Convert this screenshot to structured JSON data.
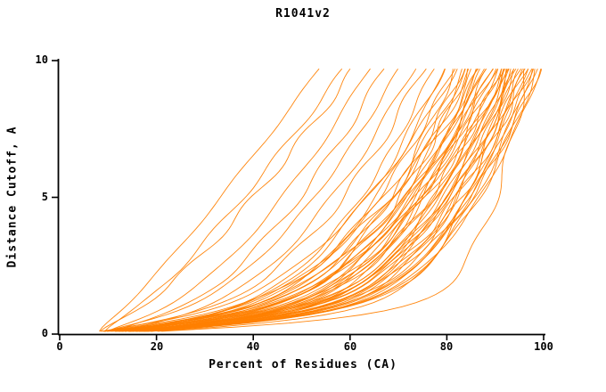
{
  "title": "R1041v2",
  "chart_data": {
    "type": "line",
    "title": "R1041v2",
    "xlabel": "Percent of Residues (CA)",
    "ylabel": "Distance Cutoff, A",
    "xlim": [
      0,
      100
    ],
    "ylim": [
      0,
      10
    ],
    "x_ticks": [
      0,
      20,
      40,
      60,
      80,
      100
    ],
    "y_ticks": [
      0,
      5,
      10
    ],
    "grid": false,
    "legend": "none",
    "line_color": "#ff8000",
    "axis_color": "#000000",
    "background_color": "#ffffff",
    "description": "Bundle of ~60 model accuracy curves (distance cutoff vs percent of CA residues fitted), all drawn in thin orange lines, converging near (7,0.2) at bottom-left and fanning out toward the top-right; a few steep outlier curves reach the top near x=55-62 while the dense main bundle reaches the top between x=85 and x=100.",
    "curve_model": "x(y) = start_x + (top_x - start_x) * (1 - exp(-y/knee_lambda)) * (y/10)^shape, drawn for y in [0.1, 9.75]",
    "knee_lambda": 0.4,
    "series_format": [
      "start_x",
      "top_x",
      "shape"
    ],
    "series": [
      [
        8,
        55,
        0.9
      ],
      [
        9,
        60,
        0.82
      ],
      [
        8,
        62,
        0.75
      ],
      [
        9,
        65,
        0.6
      ],
      [
        10,
        68,
        0.55
      ],
      [
        8,
        71,
        0.5
      ],
      [
        11,
        74,
        0.48
      ],
      [
        7,
        76,
        0.42
      ],
      [
        10,
        78,
        0.38
      ],
      [
        12,
        80,
        0.4
      ],
      [
        8,
        80,
        0.33
      ],
      [
        9,
        82,
        0.36
      ],
      [
        11,
        82,
        0.3
      ],
      [
        6,
        83,
        0.42
      ],
      [
        10,
        84,
        0.34
      ],
      [
        12,
        84,
        0.28
      ],
      [
        7,
        85,
        0.38
      ],
      [
        9,
        85,
        0.31
      ],
      [
        11,
        86,
        0.27
      ],
      [
        8,
        86,
        0.36
      ],
      [
        10,
        87,
        0.3
      ],
      [
        12,
        87,
        0.25
      ],
      [
        6,
        88,
        0.4
      ],
      [
        9,
        88,
        0.33
      ],
      [
        11,
        88,
        0.27
      ],
      [
        7,
        89,
        0.36
      ],
      [
        10,
        89,
        0.29
      ],
      [
        12,
        90,
        0.25
      ],
      [
        8,
        90,
        0.34
      ],
      [
        9,
        90,
        0.3
      ],
      [
        11,
        91,
        0.26
      ],
      [
        6,
        91,
        0.38
      ],
      [
        10,
        92,
        0.3
      ],
      [
        12,
        92,
        0.24
      ],
      [
        7,
        92,
        0.35
      ],
      [
        9,
        93,
        0.28
      ],
      [
        11,
        93,
        0.25
      ],
      [
        8,
        93,
        0.33
      ],
      [
        10,
        94,
        0.28
      ],
      [
        12,
        94,
        0.23
      ],
      [
        6,
        94,
        0.36
      ],
      [
        9,
        95,
        0.27
      ],
      [
        11,
        95,
        0.24
      ],
      [
        7,
        95,
        0.32
      ],
      [
        10,
        96,
        0.26
      ],
      [
        12,
        96,
        0.22
      ],
      [
        8,
        96,
        0.3
      ],
      [
        9,
        97,
        0.25
      ],
      [
        11,
        97,
        0.23
      ],
      [
        7,
        97,
        0.29
      ],
      [
        10,
        98,
        0.24
      ],
      [
        12,
        98,
        0.22
      ],
      [
        8,
        98,
        0.28
      ],
      [
        9,
        99,
        0.24
      ],
      [
        11,
        99,
        0.22
      ],
      [
        10,
        100,
        0.23
      ],
      [
        8,
        100,
        0.26
      ],
      [
        10,
        97,
        0.12
      ],
      [
        12,
        93,
        0.17
      ]
    ]
  }
}
